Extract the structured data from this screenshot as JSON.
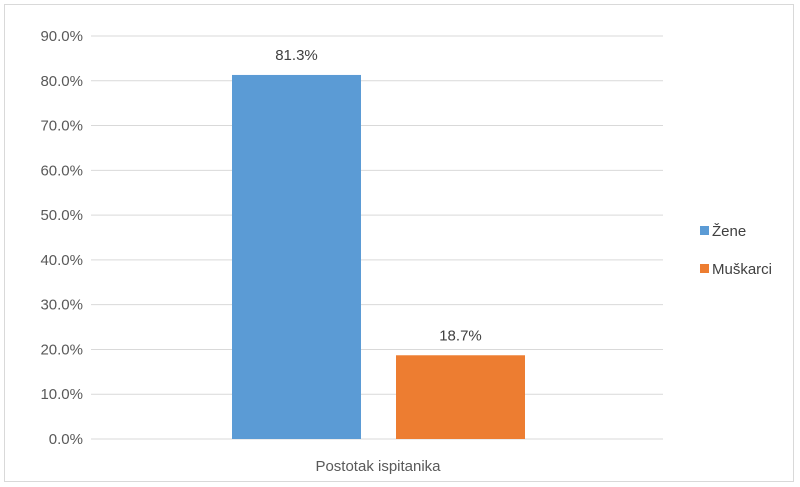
{
  "chart_data": {
    "type": "bar",
    "categories": [
      "Postotak ispitanika"
    ],
    "series": [
      {
        "name": "Žene",
        "values": [
          81.3
        ],
        "color": "#5b9bd5",
        "label": "81.3%"
      },
      {
        "name": "Muškarci",
        "values": [
          18.7
        ],
        "color": "#ed7d31",
        "label": "18.7%"
      }
    ],
    "y_ticks": [
      "0.0%",
      "10.0%",
      "20.0%",
      "30.0%",
      "40.0%",
      "50.0%",
      "60.0%",
      "70.0%",
      "80.0%",
      "90.0%"
    ],
    "ylim": [
      0,
      90
    ],
    "grid": true,
    "legend_position": "right",
    "gridline_color": "#d9d9d9"
  }
}
